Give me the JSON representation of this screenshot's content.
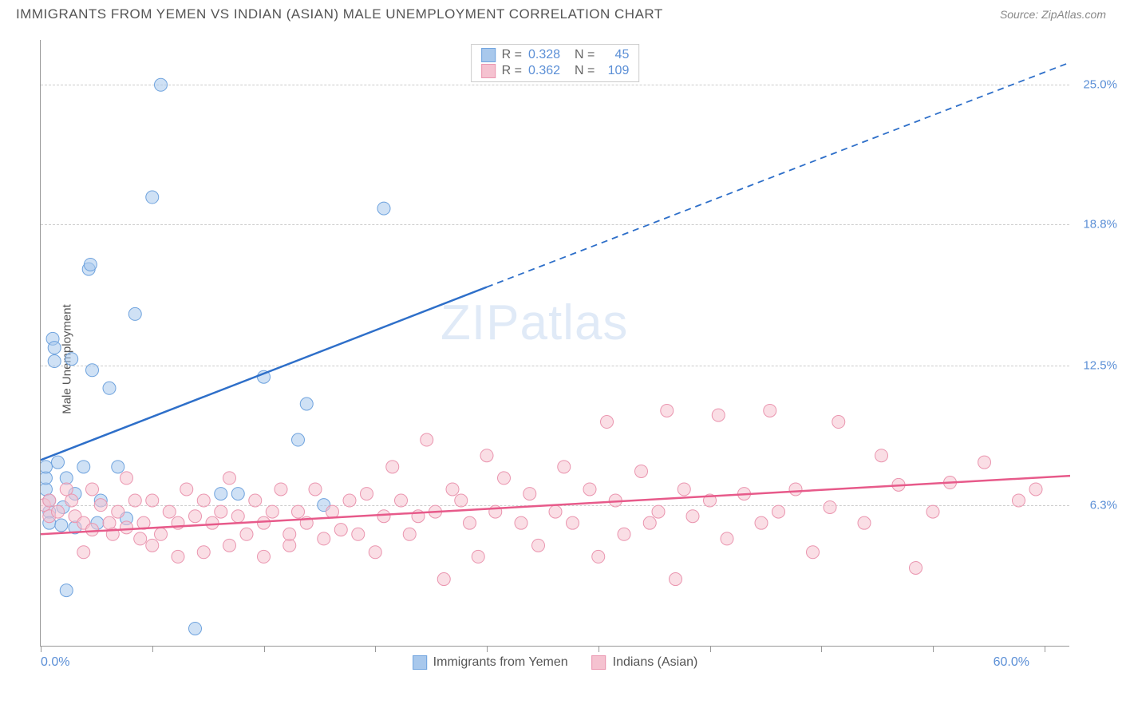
{
  "title": "IMMIGRANTS FROM YEMEN VS INDIAN (ASIAN) MALE UNEMPLOYMENT CORRELATION CHART",
  "source_label": "Source: ",
  "source_name": "ZipAtlas.com",
  "watermark": {
    "bold": "ZIP",
    "light": "atlas"
  },
  "chart": {
    "type": "scatter",
    "xlim": [
      0,
      60
    ],
    "ylim": [
      0,
      27
    ],
    "xlabel_min": "0.0%",
    "xlabel_max": "60.0%",
    "ylabel_axis": "Male Unemployment",
    "ytick_labels": [
      "6.3%",
      "12.5%",
      "18.8%",
      "25.0%"
    ],
    "ytick_values": [
      6.3,
      12.5,
      18.8,
      25.0
    ],
    "xtick_values": [
      0,
      6.5,
      13,
      19.5,
      26,
      32.5,
      39,
      45.5,
      52,
      58.5
    ],
    "grid_color": "#cccccc",
    "background_color": "#ffffff",
    "marker_radius": 8,
    "marker_opacity": 0.55,
    "line_width": 2.5,
    "series": [
      {
        "name": "Immigrants from Yemen",
        "color_fill": "#a8c8ec",
        "color_stroke": "#6fa3de",
        "line_color": "#2e6fc9",
        "R": "0.328",
        "N": "45",
        "trend_solid": {
          "x1": 0,
          "y1": 8.3,
          "x2": 26,
          "y2": 16.0
        },
        "trend_dashed": {
          "x1": 26,
          "y1": 16.0,
          "x2": 60,
          "y2": 26.0
        },
        "points": [
          [
            0.3,
            7.0
          ],
          [
            0.3,
            7.5
          ],
          [
            0.3,
            8.0
          ],
          [
            0.5,
            6.5
          ],
          [
            0.5,
            6.0
          ],
          [
            0.5,
            5.5
          ],
          [
            0.7,
            13.7
          ],
          [
            0.8,
            13.3
          ],
          [
            0.8,
            12.7
          ],
          [
            1.0,
            8.2
          ],
          [
            1.2,
            5.4
          ],
          [
            1.3,
            6.2
          ],
          [
            1.5,
            7.5
          ],
          [
            1.5,
            2.5
          ],
          [
            1.8,
            12.8
          ],
          [
            2.0,
            5.3
          ],
          [
            2.0,
            6.8
          ],
          [
            2.5,
            8.0
          ],
          [
            2.8,
            16.8
          ],
          [
            2.9,
            17.0
          ],
          [
            3.0,
            12.3
          ],
          [
            3.3,
            5.5
          ],
          [
            3.5,
            6.5
          ],
          [
            4.0,
            11.5
          ],
          [
            4.5,
            8.0
          ],
          [
            5.0,
            5.7
          ],
          [
            5.5,
            14.8
          ],
          [
            6.5,
            20.0
          ],
          [
            7.0,
            25.0
          ],
          [
            9.0,
            0.8
          ],
          [
            10.5,
            6.8
          ],
          [
            11.5,
            6.8
          ],
          [
            13.0,
            12.0
          ],
          [
            15.0,
            9.2
          ],
          [
            15.5,
            10.8
          ],
          [
            16.5,
            6.3
          ],
          [
            20.0,
            19.5
          ]
        ]
      },
      {
        "name": "Indians (Asian)",
        "color_fill": "#f5c2d0",
        "color_stroke": "#ea95af",
        "line_color": "#e75a8a",
        "R": "0.362",
        "N": "109",
        "trend_solid": {
          "x1": 0,
          "y1": 5.0,
          "x2": 60,
          "y2": 7.6
        },
        "trend_dashed": null,
        "points": [
          [
            0.2,
            6.3
          ],
          [
            0.5,
            6.5
          ],
          [
            0.5,
            5.8
          ],
          [
            1.0,
            6.0
          ],
          [
            1.5,
            7.0
          ],
          [
            1.8,
            6.5
          ],
          [
            2.0,
            5.8
          ],
          [
            2.5,
            5.5
          ],
          [
            2.5,
            4.2
          ],
          [
            3.0,
            7.0
          ],
          [
            3.0,
            5.2
          ],
          [
            3.5,
            6.3
          ],
          [
            4.0,
            5.5
          ],
          [
            4.2,
            5.0
          ],
          [
            4.5,
            6.0
          ],
          [
            5.0,
            7.5
          ],
          [
            5.0,
            5.3
          ],
          [
            5.5,
            6.5
          ],
          [
            5.8,
            4.8
          ],
          [
            6.0,
            5.5
          ],
          [
            6.5,
            6.5
          ],
          [
            6.5,
            4.5
          ],
          [
            7.0,
            5.0
          ],
          [
            7.5,
            6.0
          ],
          [
            8.0,
            5.5
          ],
          [
            8.0,
            4.0
          ],
          [
            8.5,
            7.0
          ],
          [
            9.0,
            5.8
          ],
          [
            9.5,
            6.5
          ],
          [
            9.5,
            4.2
          ],
          [
            10.0,
            5.5
          ],
          [
            10.5,
            6.0
          ],
          [
            11.0,
            7.5
          ],
          [
            11.0,
            4.5
          ],
          [
            11.5,
            5.8
          ],
          [
            12.0,
            5.0
          ],
          [
            12.5,
            6.5
          ],
          [
            13.0,
            5.5
          ],
          [
            13.0,
            4.0
          ],
          [
            13.5,
            6.0
          ],
          [
            14.0,
            7.0
          ],
          [
            14.5,
            4.5
          ],
          [
            14.5,
            5.0
          ],
          [
            15.0,
            6.0
          ],
          [
            15.5,
            5.5
          ],
          [
            16.0,
            7.0
          ],
          [
            16.5,
            4.8
          ],
          [
            17.0,
            6.0
          ],
          [
            17.5,
            5.2
          ],
          [
            18.0,
            6.5
          ],
          [
            18.5,
            5.0
          ],
          [
            19.0,
            6.8
          ],
          [
            19.5,
            4.2
          ],
          [
            20.0,
            5.8
          ],
          [
            20.5,
            8.0
          ],
          [
            21.0,
            6.5
          ],
          [
            21.5,
            5.0
          ],
          [
            22.0,
            5.8
          ],
          [
            22.5,
            9.2
          ],
          [
            23.0,
            6.0
          ],
          [
            23.5,
            3.0
          ],
          [
            24.0,
            7.0
          ],
          [
            24.5,
            6.5
          ],
          [
            25.0,
            5.5
          ],
          [
            25.5,
            4.0
          ],
          [
            26.0,
            8.5
          ],
          [
            26.5,
            6.0
          ],
          [
            27.0,
            7.5
          ],
          [
            28.0,
            5.5
          ],
          [
            28.5,
            6.8
          ],
          [
            29.0,
            4.5
          ],
          [
            30.0,
            6.0
          ],
          [
            30.5,
            8.0
          ],
          [
            31.0,
            5.5
          ],
          [
            32.0,
            7.0
          ],
          [
            32.5,
            4.0
          ],
          [
            33.0,
            10.0
          ],
          [
            33.5,
            6.5
          ],
          [
            34.0,
            5.0
          ],
          [
            35.0,
            7.8
          ],
          [
            35.5,
            5.5
          ],
          [
            36.0,
            6.0
          ],
          [
            36.5,
            10.5
          ],
          [
            37.0,
            3.0
          ],
          [
            37.5,
            7.0
          ],
          [
            38.0,
            5.8
          ],
          [
            39.0,
            6.5
          ],
          [
            39.5,
            10.3
          ],
          [
            40.0,
            4.8
          ],
          [
            41.0,
            6.8
          ],
          [
            42.0,
            5.5
          ],
          [
            42.5,
            10.5
          ],
          [
            43.0,
            6.0
          ],
          [
            44.0,
            7.0
          ],
          [
            45.0,
            4.2
          ],
          [
            46.0,
            6.2
          ],
          [
            46.5,
            10.0
          ],
          [
            48.0,
            5.5
          ],
          [
            49.0,
            8.5
          ],
          [
            50.0,
            7.2
          ],
          [
            51.0,
            3.5
          ],
          [
            52.0,
            6.0
          ],
          [
            53.0,
            7.3
          ],
          [
            55.0,
            8.2
          ],
          [
            57.0,
            6.5
          ],
          [
            58.0,
            7.0
          ]
        ]
      }
    ],
    "legend_bottom": [
      {
        "label": "Immigrants from Yemen",
        "fill": "#a8c8ec",
        "stroke": "#6fa3de"
      },
      {
        "label": "Indians (Asian)",
        "fill": "#f5c2d0",
        "stroke": "#ea95af"
      }
    ]
  }
}
